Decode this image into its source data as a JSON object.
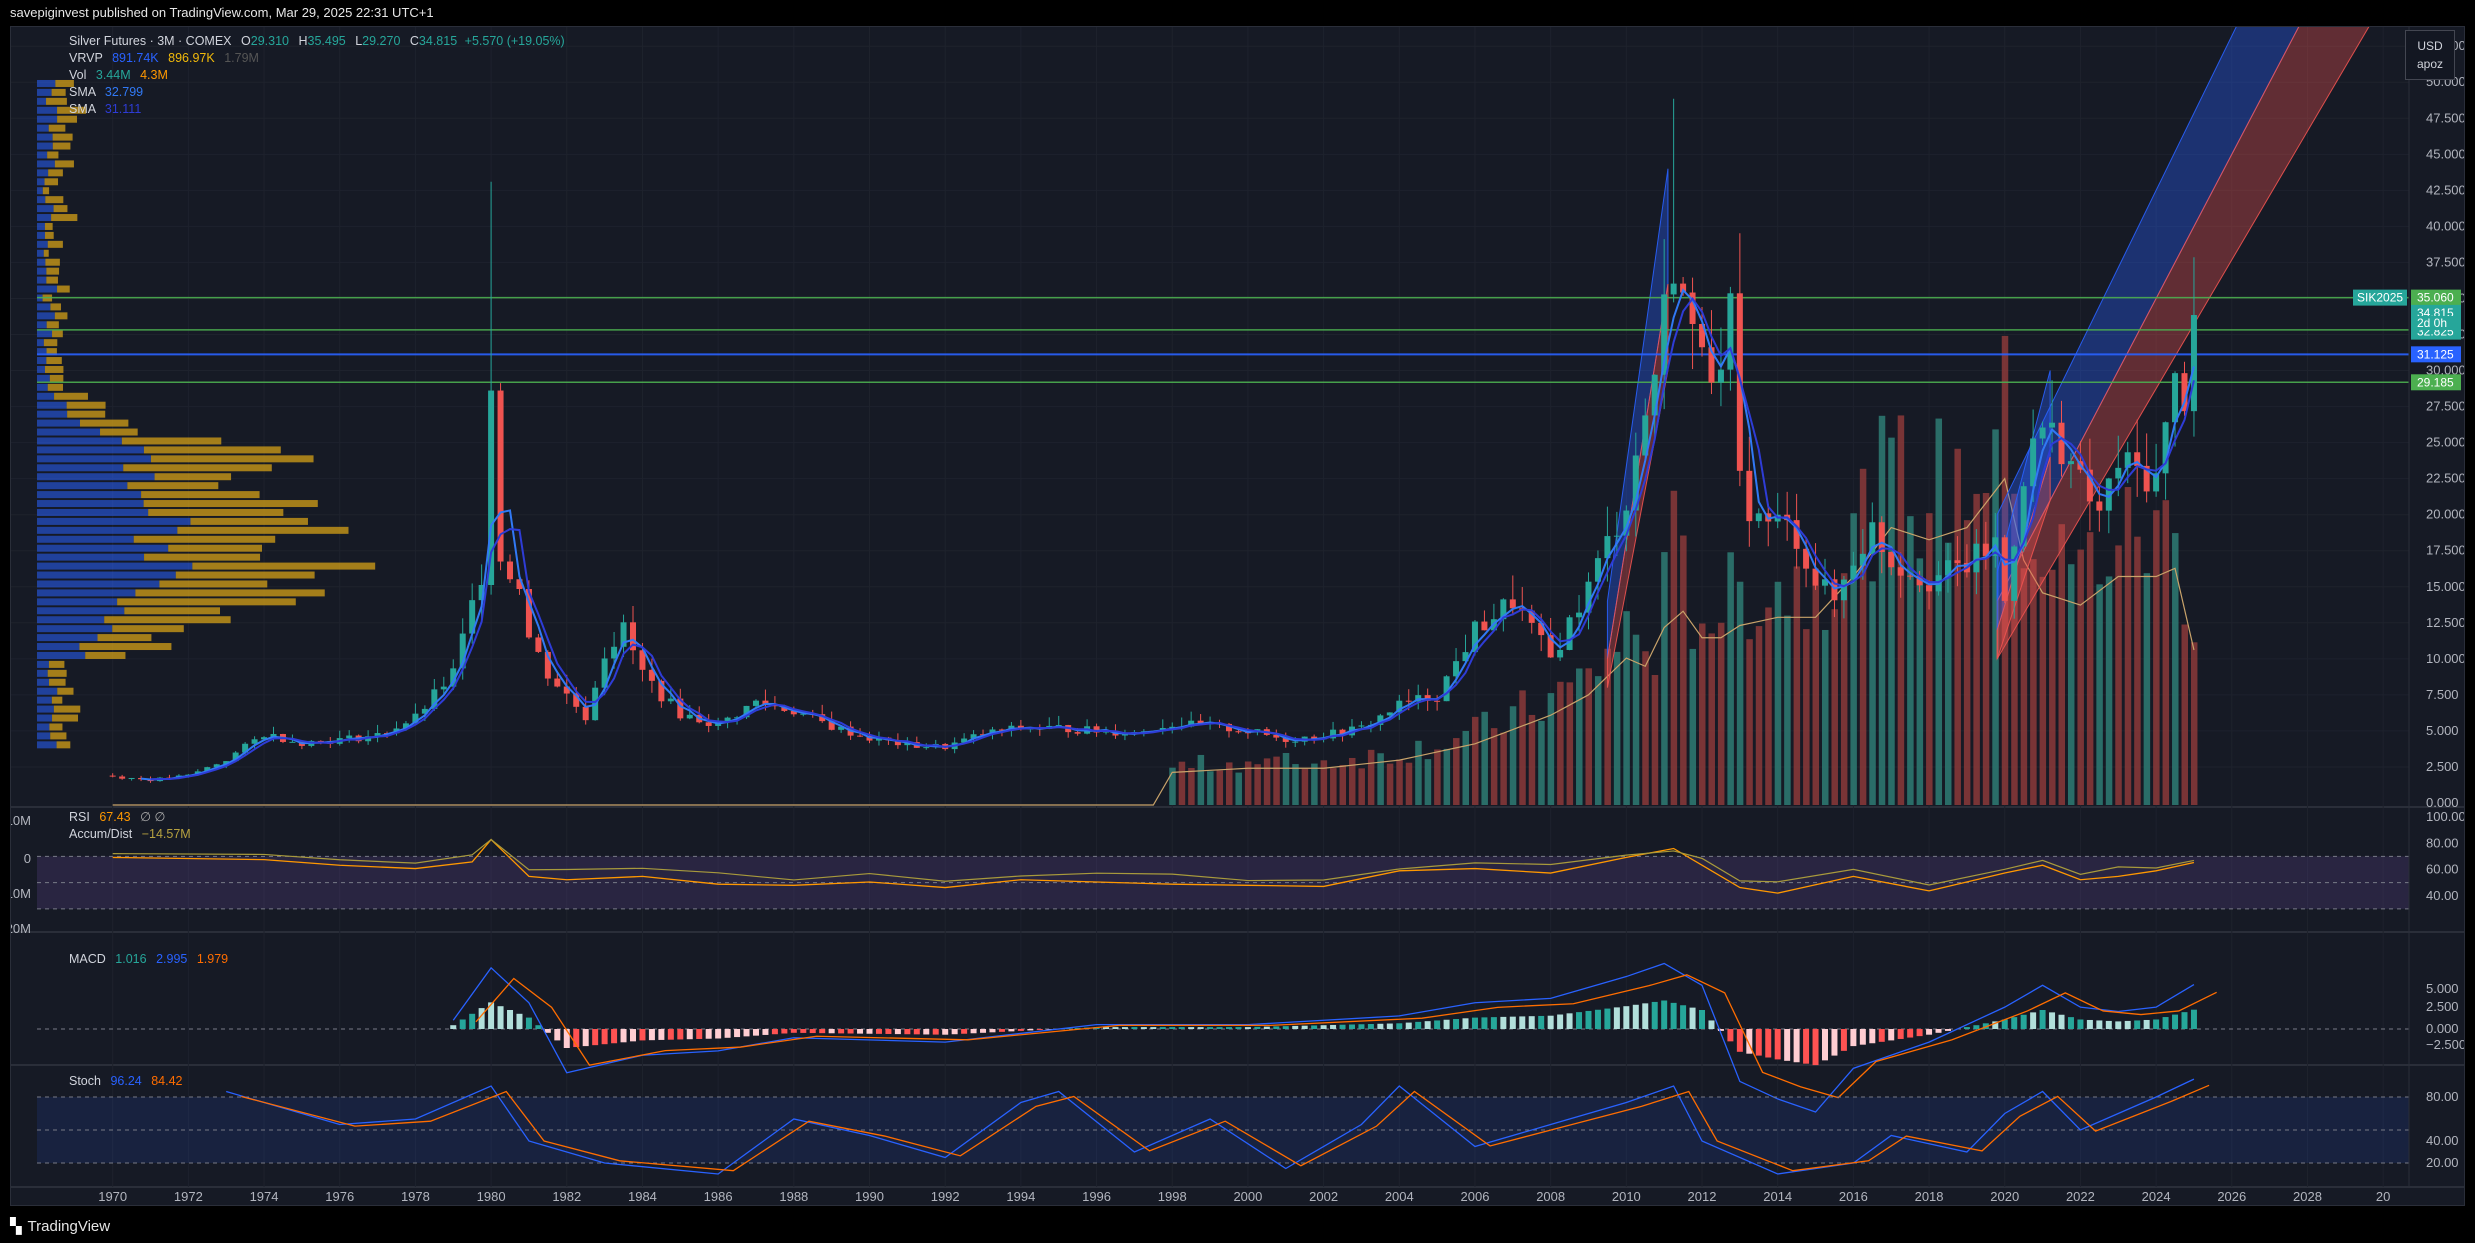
{
  "header": {
    "publish_text": "savepiginvest published on TradingView.com, Mar 29, 2025 22:31 UTC+1"
  },
  "footer": {
    "brand": "TradingView"
  },
  "controls": {
    "currency": "USD",
    "scale_mode": "apoz",
    "z_button": "Z"
  },
  "legend": {
    "title": "Silver Futures · 3M · COMEX",
    "o_label": "O",
    "o_value": "29.310",
    "h_label": "H",
    "h_value": "35.495",
    "l_label": "L",
    "l_value": "29.270",
    "c_label": "C",
    "c_value": "34.815",
    "change": "+5.570 (+19.05%)",
    "vrvp_label": "VRVP",
    "vrvp_v1": "891.74K",
    "vrvp_v2": "896.97K",
    "vrvp_v3": "1.79M",
    "vol_label": "Vol",
    "vol_v1": "3.44M",
    "vol_v2": "4.3M",
    "sma1_label": "SMA",
    "sma1_value": "32.799",
    "sma2_label": "SMA",
    "sma2_value": "31.111"
  },
  "rsi_legend": {
    "label": "RSI",
    "value": "67.43",
    "extra": "∅ ∅",
    "ad_label": "Accum/Dist",
    "ad_value": "−14.57M"
  },
  "macd_legend": {
    "label": "MACD",
    "v1": "1.016",
    "v2": "2.995",
    "v3": "1.979"
  },
  "stoch_legend": {
    "label": "Stoch",
    "v1": "96.24",
    "v2": "84.42"
  },
  "price_badges": {
    "resistance": "35.060",
    "last": "34.815",
    "countdown": "2d 0h",
    "level2": "32.825",
    "level3": "31.125",
    "support": "29.185",
    "symbol": "SIK2025"
  },
  "colors": {
    "bg": "#161a25",
    "up": "#26a69a",
    "down": "#ef5350",
    "sma_blue": "#2962ff",
    "sma_orange": "#ff9800",
    "green_line": "#4caf50",
    "blue_line": "#2962ff",
    "vrvp_blue": "#2962ff",
    "vrvp_gold": "#d4a017"
  },
  "chart_data": [
    {
      "type": "candlestick",
      "symbol": "Silver Futures · 3M · COMEX",
      "y_axis_ticks": [
        "2.500",
        "5.000",
        "7.500",
        "10.000",
        "12.500",
        "15.000",
        "17.500",
        "20.000",
        "22.500",
        "25.000",
        "27.500",
        "30.000",
        "32.500",
        "35.000",
        "37.500",
        "40.000",
        "42.500",
        "45.000",
        "47.500",
        "50.000",
        "52.500"
      ],
      "x_axis_ticks": [
        "1970",
        "1972",
        "1974",
        "1976",
        "1978",
        "1980",
        "1982",
        "1984",
        "1986",
        "1988",
        "1990",
        "1992",
        "1994",
        "1996",
        "1998",
        "2000",
        "2002",
        "2004",
        "2006",
        "2008",
        "2010",
        "2012",
        "2014",
        "2016",
        "2018",
        "2020",
        "2022",
        "2024",
        "2026",
        "2028",
        "20"
      ],
      "ylim": [
        0,
        53
      ],
      "axis_zero_label": "0.000",
      "horizontal_levels": [
        35.06,
        32.825,
        31.125,
        29.185
      ],
      "closes": [
        [
          1969.8,
          1.9
        ],
        [
          1971,
          1.6
        ],
        [
          1972,
          1.9
        ],
        [
          1973,
          3.0
        ],
        [
          1974,
          4.8
        ],
        [
          1975,
          4.2
        ],
        [
          1976,
          4.4
        ],
        [
          1977,
          4.7
        ],
        [
          1978,
          5.9
        ],
        [
          1979,
          9.0
        ],
        [
          1979.75,
          16.0
        ],
        [
          1980,
          30.0
        ],
        [
          1980.25,
          17.0
        ],
        [
          1980.5,
          16.0
        ],
        [
          1980.75,
          15.5
        ],
        [
          1981,
          11.5
        ],
        [
          1981.5,
          9.0
        ],
        [
          1982,
          7.5
        ],
        [
          1982.5,
          6.0
        ],
        [
          1983,
          10.5
        ],
        [
          1983.5,
          12.0
        ],
        [
          1984,
          9.0
        ],
        [
          1984.5,
          7.5
        ],
        [
          1985,
          6.2
        ],
        [
          1986,
          5.4
        ],
        [
          1987,
          7.0
        ],
        [
          1988,
          6.4
        ],
        [
          1989,
          5.3
        ],
        [
          1990,
          4.5
        ],
        [
          1991,
          4.0
        ],
        [
          1992,
          3.9
        ],
        [
          1993,
          4.8
        ],
        [
          1994,
          5.2
        ],
        [
          1995,
          5.2
        ],
        [
          1996,
          5.0
        ],
        [
          1997,
          4.9
        ],
        [
          1998,
          5.5
        ],
        [
          1999,
          5.3
        ],
        [
          2000,
          5.0
        ],
        [
          2001,
          4.4
        ],
        [
          2002,
          4.7
        ],
        [
          2003,
          5.2
        ],
        [
          2004,
          6.8
        ],
        [
          2005,
          7.5
        ],
        [
          2006,
          12.0
        ],
        [
          2007,
          14.0
        ],
        [
          2008,
          10.0
        ],
        [
          2009,
          15.0
        ],
        [
          2010,
          21.0
        ],
        [
          2010.75,
          30.0
        ],
        [
          2011.25,
          38.0
        ],
        [
          2011.5,
          35.0
        ],
        [
          2011.75,
          32.0
        ],
        [
          2012,
          33.0
        ],
        [
          2012.5,
          29.0
        ],
        [
          2012.75,
          33.5
        ],
        [
          2013,
          22.0
        ],
        [
          2013.5,
          19.5
        ],
        [
          2014,
          19.5
        ],
        [
          2014.5,
          18.5
        ],
        [
          2015,
          15.5
        ],
        [
          2015.5,
          14.0
        ],
        [
          2016,
          17.0
        ],
        [
          2016.5,
          19.0
        ],
        [
          2017,
          16.8
        ],
        [
          2018,
          15.5
        ],
        [
          2019,
          16.5
        ],
        [
          2019.75,
          18.0
        ],
        [
          2020,
          14.0
        ],
        [
          2020.5,
          23.0
        ],
        [
          2021,
          26.0
        ],
        [
          2021.5,
          25.0
        ],
        [
          2022,
          22.0
        ],
        [
          2022.5,
          20.0
        ],
        [
          2023,
          23.5
        ],
        [
          2023.5,
          23.0
        ],
        [
          2024,
          22.5
        ],
        [
          2024.5,
          29.0
        ],
        [
          2024.75,
          28.5
        ],
        [
          2025,
          34.815
        ]
      ]
    },
    {
      "type": "bar",
      "name": "Vol",
      "note": "volume bars, x in years, values relative",
      "x": [
        1998,
        2000,
        2002,
        2004,
        2006,
        2008,
        2009,
        2010,
        2010.75,
        2011.25,
        2011.75,
        2012.5,
        2013,
        2014,
        2015,
        2016,
        2017,
        2018,
        2019,
        2020,
        2020.5,
        2021,
        2022,
        2023,
        2024,
        2024.5,
        2025
      ],
      "values": [
        0.8,
        0.9,
        0.9,
        1.1,
        1.5,
        2.2,
        2.7,
        3.6,
        3.3,
        5.4,
        4.1,
        4.1,
        4.4,
        4.6,
        4.6,
        5.6,
        6.8,
        6.5,
        6.8,
        8.0,
        6.0,
        5.2,
        4.9,
        5.6,
        5.6,
        5.8,
        3.8
      ]
    },
    {
      "type": "line",
      "name": "RSI",
      "y_axis_ticks": [
        "40.00",
        "60.00",
        "80.00",
        "100.00"
      ],
      "left_axis_ticks": [
        "10M",
        "0",
        "−10M",
        "−20M"
      ],
      "x": [
        1970,
        1974,
        1976,
        1978,
        1979.5,
        1980,
        1981,
        1982,
        1984,
        1986,
        1988,
        1990,
        1992,
        1994,
        1996,
        1998,
        2000,
        2002,
        2004,
        2006,
        2008,
        2010,
        2011.25,
        2012,
        2013,
        2014,
        2016,
        2018,
        2020,
        2021,
        2022,
        2023,
        2024,
        2025
      ],
      "values": [
        72,
        70,
        65,
        62,
        68,
        88,
        55,
        52,
        55,
        48,
        47,
        50,
        45,
        52,
        50,
        48,
        47,
        46,
        60,
        62,
        58,
        72,
        80,
        65,
        45,
        40,
        55,
        42,
        58,
        65,
        52,
        55,
        60,
        67.43
      ]
    },
    {
      "type": "bar",
      "name": "MACD",
      "y_axis_ticks": [
        "−2.500",
        "0.000",
        "2.500",
        "5.000"
      ],
      "x": [
        1979,
        1980,
        1981,
        1982,
        1984,
        1986,
        1988,
        1992,
        1996,
        2000,
        2004,
        2006,
        2008,
        2010,
        2011,
        2012,
        2013,
        2014,
        2015,
        2016,
        2018,
        2020,
        2021,
        2022,
        2023,
        2024,
        2025
      ],
      "values": [
        0.2,
        1.4,
        0.6,
        -1.0,
        -0.6,
        -0.5,
        -0.2,
        -0.3,
        0.1,
        0.1,
        0.3,
        0.6,
        0.7,
        1.2,
        1.5,
        1.0,
        -1.2,
        -1.6,
        -1.9,
        -0.9,
        -0.3,
        0.5,
        1.0,
        0.5,
        0.4,
        0.5,
        1.016
      ]
    },
    {
      "type": "line",
      "name": "Stoch",
      "y_axis_ticks": [
        "20.00",
        "40.00",
        "80.00"
      ],
      "x": [
        1973,
        1976,
        1978,
        1980,
        1981,
        1983,
        1986,
        1988,
        1990,
        1992,
        1994,
        1995,
        1997,
        1999,
        2001,
        2003,
        2004,
        2006,
        2008,
        2010,
        2011.25,
        2012,
        2014,
        2016,
        2017,
        2019,
        2020,
        2021,
        2022,
        2023,
        2024,
        2025
      ],
      "values": [
        85,
        55,
        60,
        90,
        40,
        20,
        10,
        60,
        45,
        25,
        75,
        85,
        30,
        60,
        15,
        55,
        90,
        35,
        55,
        75,
        90,
        40,
        10,
        20,
        45,
        30,
        65,
        85,
        50,
        65,
        80,
        96.24
      ]
    }
  ]
}
